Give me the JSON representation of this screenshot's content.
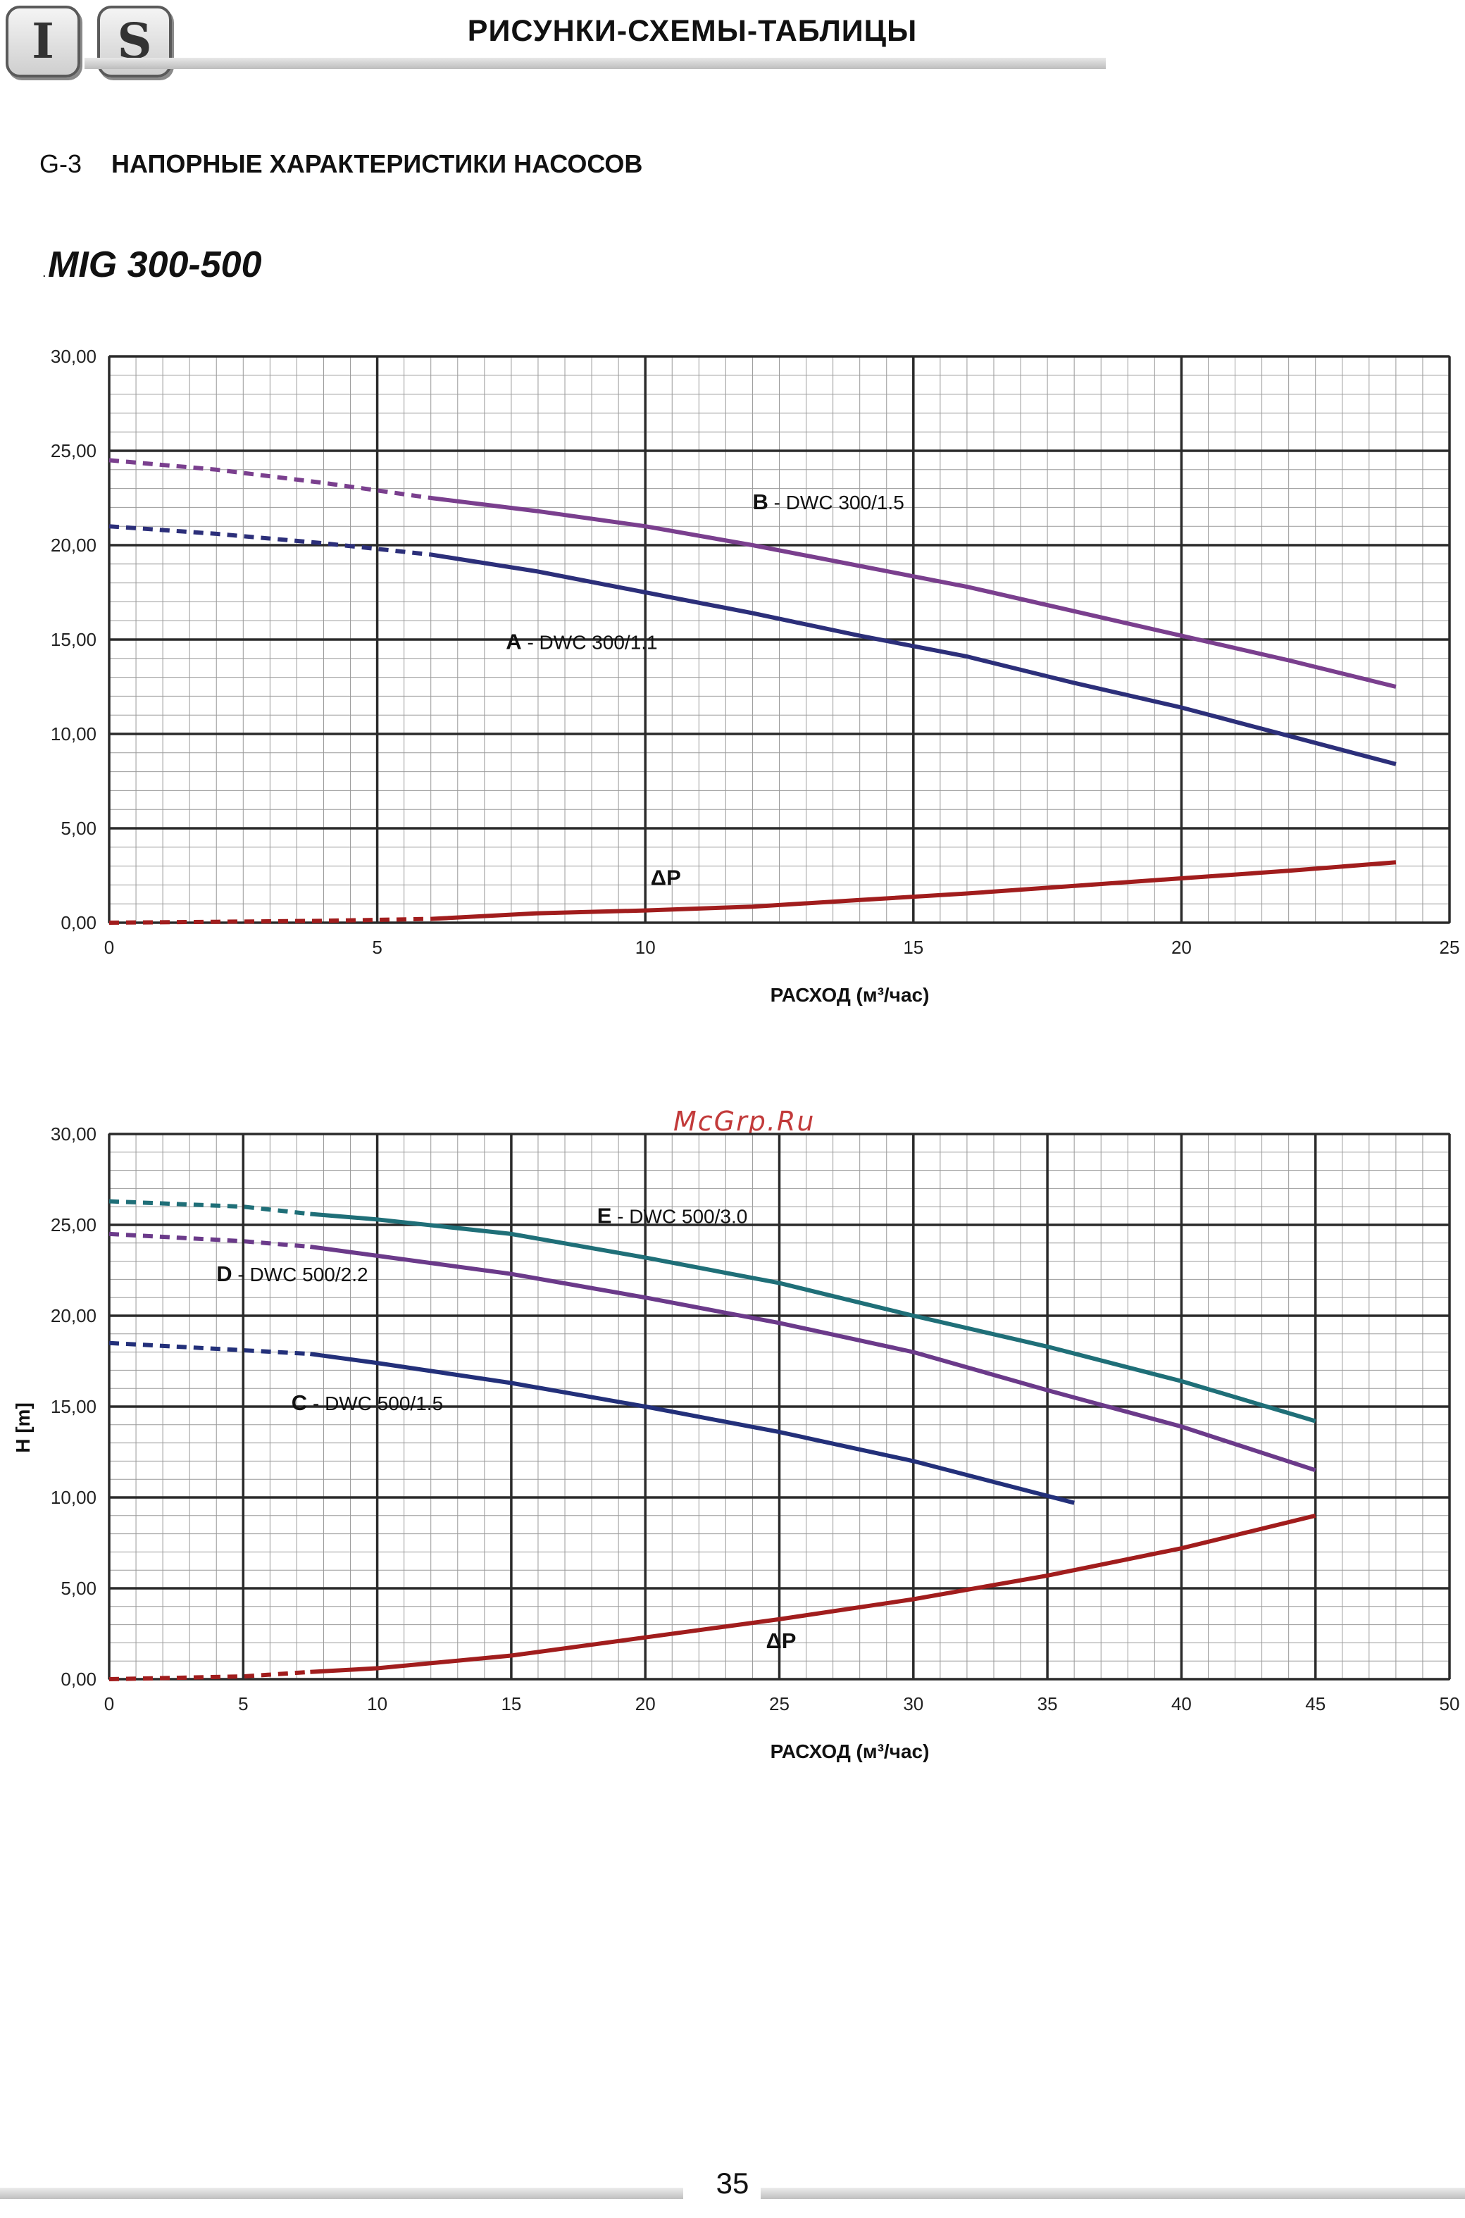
{
  "header": {
    "logo_letters": [
      "I",
      "S"
    ],
    "title": "РИСУНКИ-СХЕМЫ-ТАБЛИЦЫ"
  },
  "section": {
    "code": "G-3",
    "title": "НАПОРНЫЕ ХАРАКТЕРИСТИКИ НАСОСОВ"
  },
  "model": "MIG 300-500",
  "watermark": "McGrp.Ru",
  "page_number": "35",
  "colors": {
    "B": "#7a3f8e",
    "A": "#2c2f7a",
    "E": "#1f6f78",
    "D": "#6b3a8a",
    "C": "#23307a",
    "dP": "#a11d1d",
    "grid_major": "#2a2a2a",
    "grid_minor": "#9a9a9a"
  },
  "chart_data": [
    {
      "type": "line",
      "title": "",
      "xlabel": "РАСХОД (м³/час)",
      "ylabel": "",
      "xlim": [
        0,
        25
      ],
      "ylim": [
        0,
        30
      ],
      "x_ticks": [
        "0",
        "5",
        "10",
        "15",
        "20",
        "25"
      ],
      "y_ticks": [
        "0,00",
        "5,00",
        "10,00",
        "15,00",
        "20,00",
        "25,00",
        "30,00"
      ],
      "grid": true,
      "series": [
        {
          "key": "B",
          "name_letter": "B",
          "name": "DWC 300/1.5",
          "color_key": "B",
          "dashed_until": 6,
          "x": [
            0,
            2,
            4,
            6,
            8,
            10,
            12,
            14,
            16,
            18,
            20,
            22,
            24
          ],
          "y": [
            24.5,
            24.0,
            23.3,
            22.5,
            21.8,
            21.0,
            20.0,
            18.9,
            17.8,
            16.5,
            15.2,
            13.9,
            12.5
          ]
        },
        {
          "key": "A",
          "name_letter": "A",
          "name": "DWC 300/1.1",
          "color_key": "A",
          "dashed_until": 6,
          "x": [
            0,
            2,
            4,
            6,
            8,
            10,
            12,
            14,
            16,
            18,
            20,
            22,
            24
          ],
          "y": [
            21.0,
            20.6,
            20.1,
            19.5,
            18.6,
            17.5,
            16.4,
            15.2,
            14.1,
            12.7,
            11.4,
            9.9,
            8.4
          ]
        },
        {
          "key": "dP",
          "name_letter": "ΔP",
          "name": "",
          "color_key": "dP",
          "dashed_until": 6,
          "x": [
            0,
            2,
            4,
            6,
            8,
            10,
            12,
            14,
            16,
            18,
            20,
            22,
            24
          ],
          "y": [
            0.0,
            0.05,
            0.1,
            0.2,
            0.5,
            0.65,
            0.85,
            1.2,
            1.55,
            1.95,
            2.35,
            2.75,
            3.2
          ]
        }
      ],
      "labels": [
        {
          "series": "B",
          "x": 12.0,
          "y": 21.9
        },
        {
          "series": "A",
          "x": 7.4,
          "y": 14.5
        },
        {
          "series": "dP",
          "x": 10.1,
          "y": 2.0
        }
      ]
    },
    {
      "type": "line",
      "title": "",
      "xlabel": "РАСХОД (м³/час)",
      "ylabel": "H [m]",
      "xlim": [
        0,
        50
      ],
      "ylim": [
        0,
        30
      ],
      "x_ticks": [
        "0",
        "5",
        "10",
        "15",
        "20",
        "25",
        "30",
        "35",
        "40",
        "45",
        "50"
      ],
      "y_ticks": [
        "0,00",
        "5,00",
        "10,00",
        "15,00",
        "20,00",
        "25,00",
        "30,00"
      ],
      "grid": true,
      "series": [
        {
          "key": "E",
          "name_letter": "E",
          "name": "DWC 500/3.0",
          "color_key": "E",
          "dashed_until": 7.5,
          "x": [
            0,
            5,
            7.5,
            10,
            15,
            20,
            25,
            30,
            35,
            40,
            45
          ],
          "y": [
            26.3,
            26.0,
            25.6,
            25.3,
            24.5,
            23.2,
            21.8,
            20.0,
            18.3,
            16.4,
            14.2
          ]
        },
        {
          "key": "D",
          "name_letter": "D",
          "name": "DWC 500/2.2",
          "color_key": "D",
          "dashed_until": 7.5,
          "x": [
            0,
            5,
            7.5,
            10,
            15,
            20,
            25,
            30,
            35,
            40,
            45
          ],
          "y": [
            24.5,
            24.1,
            23.8,
            23.3,
            22.3,
            21.0,
            19.6,
            18.0,
            15.9,
            13.9,
            11.5
          ]
        },
        {
          "key": "C",
          "name_letter": "C",
          "name": "DWC 500/1.5",
          "color_key": "C",
          "dashed_until": 7.5,
          "x": [
            0,
            5,
            7.5,
            10,
            15,
            20,
            25,
            30,
            36
          ],
          "y": [
            18.5,
            18.1,
            17.9,
            17.4,
            16.3,
            15.0,
            13.6,
            12.0,
            9.7
          ]
        },
        {
          "key": "dP",
          "name_letter": "ΔP",
          "name": "",
          "color_key": "dP",
          "dashed_until": 7.5,
          "x": [
            0,
            5,
            7.5,
            10,
            15,
            20,
            25,
            30,
            35,
            40,
            45
          ],
          "y": [
            0.0,
            0.15,
            0.4,
            0.6,
            1.3,
            2.3,
            3.3,
            4.4,
            5.7,
            7.2,
            9.0
          ]
        }
      ],
      "labels": [
        {
          "series": "E",
          "x": 18.2,
          "y": 25.1
        },
        {
          "series": "D",
          "x": 4.0,
          "y": 21.9
        },
        {
          "series": "C",
          "x": 6.8,
          "y": 14.8
        },
        {
          "series": "dP",
          "x": 24.5,
          "y": 1.7
        }
      ]
    }
  ]
}
